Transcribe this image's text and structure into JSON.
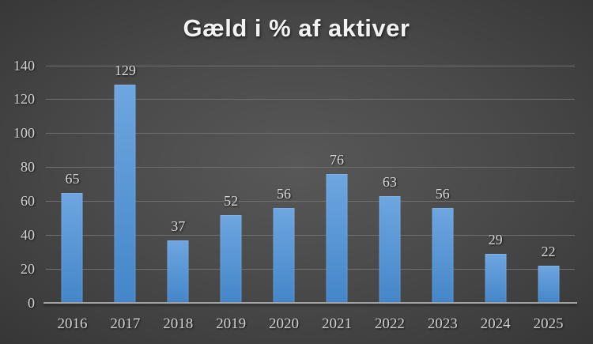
{
  "chart_data": {
    "type": "bar",
    "title": "Gæld i % af aktiver",
    "categories": [
      "2016",
      "2017",
      "2018",
      "2019",
      "2020",
      "2021",
      "2022",
      "2023",
      "2024",
      "2025"
    ],
    "values": [
      65,
      129,
      37,
      52,
      56,
      76,
      63,
      56,
      29,
      22
    ],
    "xlabel": "",
    "ylabel": "",
    "ylim": [
      0,
      140
    ],
    "yticks": [
      0,
      20,
      40,
      60,
      80,
      100,
      120,
      140
    ],
    "grid": true,
    "legend": "none",
    "data_labels": true
  },
  "colors": {
    "background_center": "#585858",
    "background_edge": "#1f1f1f",
    "bar_gradient_top": "#6ea6e0",
    "bar_gradient_bottom": "#4486c9",
    "gridline": "#707070",
    "axis_line": "#a3a3a3",
    "tick_label": "#d2d2d2",
    "data_label": "#dadada",
    "title": "#f2f2f2"
  }
}
